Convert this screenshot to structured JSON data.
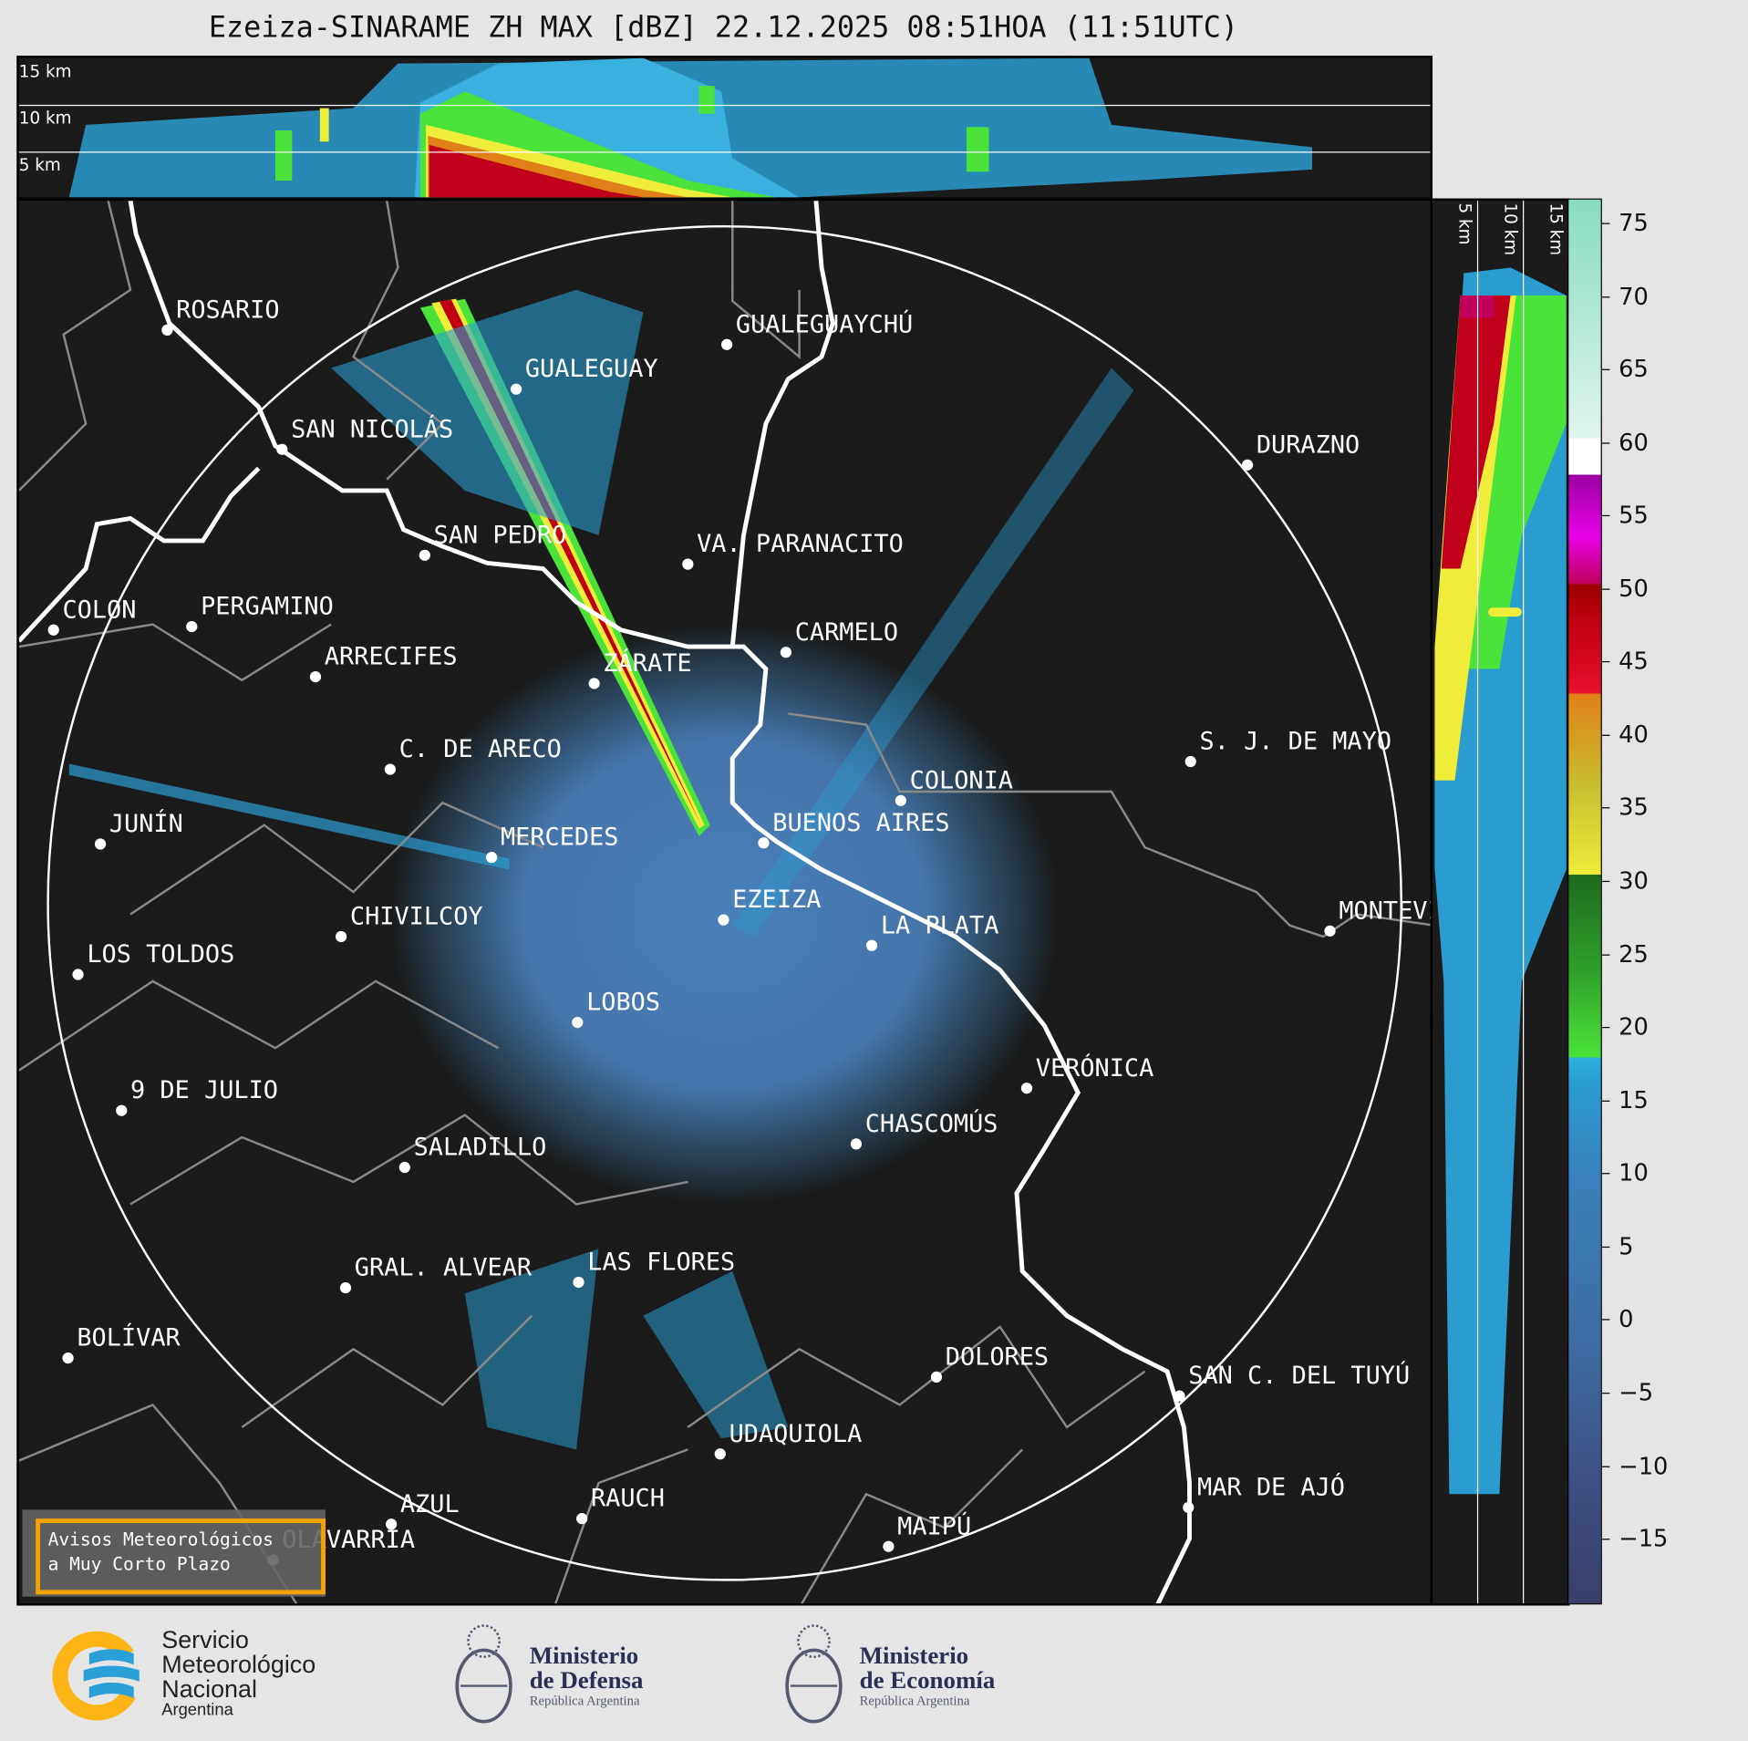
{
  "title": "Ezeiza-SINARAME ZH MAX [dBZ] 22.12.2025 08:51HOA (11:51UTC)",
  "top_panel": {
    "height_labels": [
      "15 km",
      "10 km",
      "5 km"
    ]
  },
  "side_panel": {
    "height_labels": [
      "5 km",
      "10 km",
      "15 km"
    ]
  },
  "colorbar": {
    "unit": "dBZ",
    "ticks": [
      "75",
      "70",
      "65",
      "60",
      "55",
      "50",
      "45",
      "40",
      "35",
      "30",
      "25",
      "20",
      "15",
      "10",
      "5",
      "0",
      "−5",
      "−10",
      "−15"
    ],
    "colors": {
      "weak": "#3a7ab5",
      "light": "#2aa8dc",
      "moderate": "#4be33a",
      "heavy": "#f0ec3a",
      "intense": "#e08018",
      "severe": "#e8102e",
      "extreme": "#c000c0",
      "hail": "#ffffff",
      "max": "#88dcc0"
    }
  },
  "map": {
    "background": "#1b1b1b",
    "radar_site": "EZEIZA",
    "cities": [
      "ROSARIO",
      "GUALEGUAYCHÚ",
      "GUALEGUAY",
      "SAN NICOLÁS",
      "DURAZNO",
      "SAN PEDRO",
      "VA. PARANACITO",
      "COLON",
      "PERGAMINO",
      "CARMELO",
      "ARRECIFES",
      "ZÁRATE",
      "S. J. DE MAYO",
      "C. DE ARECO",
      "COLONIA",
      "BUENOS AIRES",
      "JUNÍN",
      "MERCEDES",
      "EZEIZA",
      "MONTEVIDEO",
      "CHIVILCOY",
      "LA PLATA",
      "LOS TOLDOS",
      "LOBOS",
      "VERÓNICA",
      "9 DE JULIO",
      "CHASCOMÚS",
      "SALADILLO",
      "GRAL. ALVEAR",
      "LAS FLORES",
      "BOLÍVAR",
      "DOLORES",
      "SAN C. DEL TUYÚ",
      "UDAQUIOLA",
      "MAR DE AJÓ",
      "AZUL",
      "RAUCH",
      "OLAVARRÍA",
      "MAIPÚ"
    ]
  },
  "warning_box": {
    "line1": "Avisos Meteorológicos",
    "line2": "a Muy Corto Plazo"
  },
  "footer": {
    "smn": {
      "l1": "Servicio",
      "l2": "Meteorológico",
      "l3": "Nacional",
      "l4": "Argentina"
    },
    "defensa": {
      "l1": "Ministerio",
      "l2": "de Defensa",
      "l3": "República Argentina"
    },
    "economia": {
      "l1": "Ministerio",
      "l2": "de Economía",
      "l3": "República Argentina"
    }
  }
}
